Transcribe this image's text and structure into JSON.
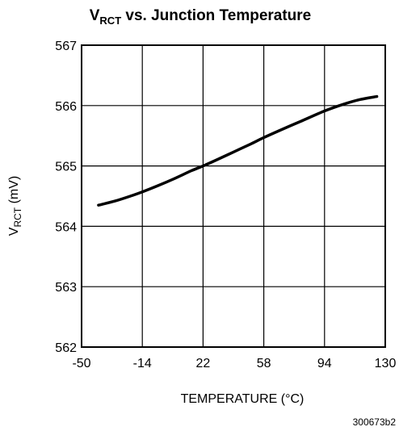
{
  "chart_data": {
    "type": "line",
    "title": {
      "symbol": "V",
      "subscript": "RCT",
      "rest": " vs. Junction Temperature"
    },
    "xlabel": "TEMPERATURE (°C)",
    "ylabel": {
      "symbol": "V",
      "subscript": "RCT",
      "rest": " (mV)"
    },
    "xlim": [
      -50,
      130
    ],
    "ylim": [
      562,
      567
    ],
    "xticks": [
      "-50",
      "-14",
      "22",
      "58",
      "94",
      "130"
    ],
    "yticks": [
      "562",
      "563",
      "564",
      "565",
      "566",
      "567"
    ],
    "grid": true,
    "series": [
      {
        "x": [
          -40,
          -30,
          -20,
          -14,
          -5,
          5,
          15,
          22,
          30,
          40,
          50,
          58,
          70,
          80,
          94,
          105,
          115,
          125
        ],
        "y": [
          564.35,
          564.42,
          564.51,
          564.57,
          564.67,
          564.79,
          564.92,
          565.0,
          565.1,
          565.23,
          565.36,
          565.47,
          565.62,
          565.74,
          565.91,
          566.02,
          566.1,
          566.15
        ]
      }
    ],
    "colors": {
      "line": "#000000",
      "grid": "#000000",
      "background": "#ffffff"
    },
    "figure_id": "300673b2"
  }
}
